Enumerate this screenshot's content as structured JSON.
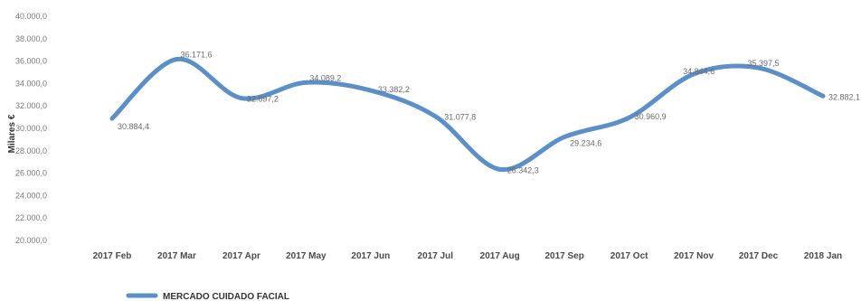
{
  "chart_data": {
    "type": "line",
    "title": "",
    "xlabel": "",
    "ylabel": "Milares €",
    "ylim": [
      20000,
      40000
    ],
    "ytick_step": 2000,
    "y_tick_labels": [
      "20.000,0",
      "22.000,0",
      "24.000,0",
      "26.000,0",
      "28.000,0",
      "30.000,0",
      "32.000,0",
      "34.000,0",
      "36.000,0",
      "38.000,0",
      "40.000,0"
    ],
    "categories": [
      "2017 Feb",
      "2017 Mar",
      "2017 Apr",
      "2017 May",
      "2017 Jun",
      "2017 Jul",
      "2017 Aug",
      "2017 Sep",
      "2017 Oct",
      "2017 Nov",
      "2017 Dec",
      "2018 Jan"
    ],
    "series": [
      {
        "name": "MERCADO CUIDADO FACIAL",
        "color": "#5b8fc7",
        "values": [
          30884.4,
          36171.6,
          32697.2,
          34089.2,
          33382.2,
          31077.8,
          26342.3,
          29234.6,
          30960.9,
          34844.6,
          35397.5,
          32882.1
        ],
        "labels": [
          "30.884,4",
          "36.171,6",
          "32.697,2",
          "34.089,2",
          "33.382,2",
          "31.077,8",
          "26.342,3",
          "29.234,6",
          "30.960,9",
          "34.844,6",
          "35.397,5",
          "32.882,1"
        ]
      }
    ],
    "legend_position": "bottom-left",
    "grid": false
  }
}
